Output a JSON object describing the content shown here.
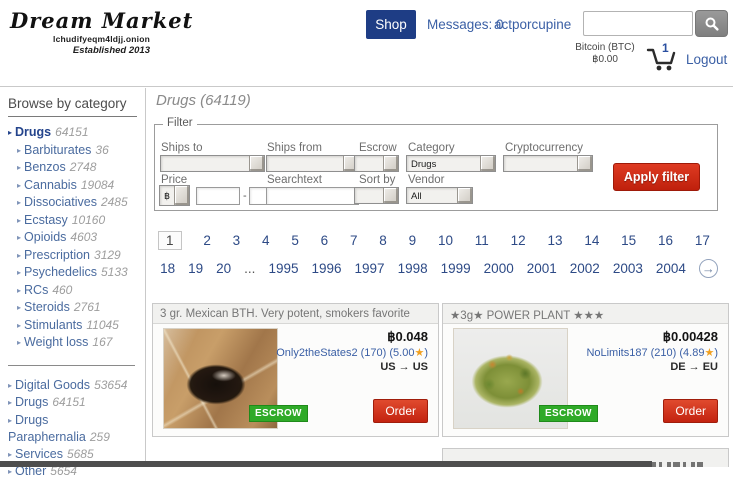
{
  "header": {
    "logo": {
      "title": "Dream Market",
      "onion": "lchudifyeqm4ldjj.onion",
      "established": "Established 2013"
    },
    "shop_button": "Shop",
    "messages_link": "Messages: 0",
    "username": "actporcupine",
    "search": {
      "placeholder": ""
    },
    "wallet": {
      "label": "Bitcoin (BTC)",
      "value": "฿0.00"
    },
    "cart": {
      "count": "1"
    },
    "logout_link": "Logout"
  },
  "sidebar": {
    "heading": "Browse by category",
    "categories": [
      {
        "label": "Drugs",
        "count": "64151",
        "level": 0,
        "bold": true
      },
      {
        "label": "Barbiturates",
        "count": "36",
        "level": 1
      },
      {
        "label": "Benzos",
        "count": "2748",
        "level": 1
      },
      {
        "label": "Cannabis",
        "count": "19084",
        "level": 1
      },
      {
        "label": "Dissociatives",
        "count": "2485",
        "level": 1
      },
      {
        "label": "Ecstasy",
        "count": "10160",
        "level": 1
      },
      {
        "label": "Opioids",
        "count": "4603",
        "level": 1
      },
      {
        "label": "Prescription",
        "count": "3129",
        "level": 1
      },
      {
        "label": "Psychedelics",
        "count": "5133",
        "level": 1
      },
      {
        "label": "RCs",
        "count": "460",
        "level": 1
      },
      {
        "label": "Steroids",
        "count": "2761",
        "level": 1
      },
      {
        "label": "Stimulants",
        "count": "11045",
        "level": 1
      },
      {
        "label": "Weight loss",
        "count": "167",
        "level": 1
      }
    ],
    "categories_secondary": [
      {
        "label": "Digital Goods",
        "count": "53654",
        "level": 0
      },
      {
        "label": "Drugs",
        "count": "64151",
        "level": 0
      },
      {
        "label": "Drugs Paraphernalia",
        "count": "259",
        "level": 0
      },
      {
        "label": "Services",
        "count": "5685",
        "level": 0
      },
      {
        "label": "Other",
        "count": "5654",
        "level": 0
      }
    ]
  },
  "main": {
    "title": "Drugs (64119)",
    "filter": {
      "legend": "Filter",
      "ships_to_label": "Ships to",
      "ships_from_label": "Ships from",
      "escrow_label": "Escrow",
      "category_label": "Category",
      "category_value": "Drugs",
      "cryptocurrency_label": "Cryptocurrency",
      "price_label": "Price",
      "price_currency": "฿",
      "price_separator": "-",
      "searchtext_label": "Searchtext",
      "sort_by_label": "Sort by",
      "vendor_label": "Vendor",
      "vendor_value": "All",
      "apply_button": "Apply filter"
    },
    "pagination": {
      "current": "1",
      "row1": [
        "1",
        "2",
        "3",
        "4",
        "5",
        "6",
        "7",
        "8",
        "9",
        "10",
        "11",
        "12",
        "13",
        "14",
        "15",
        "16",
        "17"
      ],
      "row2": [
        "18",
        "19",
        "20",
        "...",
        "1995",
        "1996",
        "1997",
        "1998",
        "1999",
        "2000",
        "2001",
        "2002",
        "2003",
        "2004"
      ],
      "next_icon": "→"
    },
    "products": [
      {
        "title": "3 gr. Mexican BTH. Very potent, smokers favorite",
        "price": "฿0.048",
        "vendor": "Only2theStates2 (170)",
        "rating_open": "(5.00",
        "rating_star": "★",
        "rating_close": ")",
        "route": "US → US",
        "escrow_badge": "ESCROW",
        "order_button": "Order"
      },
      {
        "title": "★3g★ POWER PLANT ★★★",
        "price": "฿0.00428",
        "vendor": "NoLimits187 (210)",
        "rating_open": "(4.89",
        "rating_star": "★",
        "rating_close": ")",
        "route": "DE → EU",
        "escrow_badge": "ESCROW",
        "order_button": "Order"
      }
    ]
  },
  "colors": {
    "accent_navy": "#1e3d85",
    "link_blue": "#3a5fa5",
    "button_red": "#c32310",
    "escrow_green": "#2faa28",
    "star_orange": "#f0a020"
  }
}
